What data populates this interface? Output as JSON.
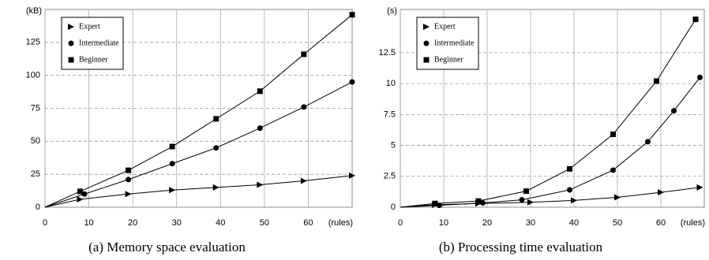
{
  "chart_data": [
    {
      "type": "line",
      "caption": "(a)  Memory space evaluation",
      "ylabel": "(kB)",
      "xlabel": "(rules)",
      "xlim": [
        0,
        70
      ],
      "xticks": [
        0,
        10,
        20,
        30,
        40,
        50,
        60
      ],
      "ylim": [
        0,
        150
      ],
      "yticks": [
        0,
        25,
        50,
        75,
        100,
        125
      ],
      "grid": true,
      "legend": "upper left",
      "series": [
        {
          "name": "Expert",
          "color": "#000000",
          "marker": "triangle",
          "x": [
            0,
            8,
            19,
            29,
            39,
            49,
            59,
            70
          ],
          "values": [
            0,
            6,
            10,
            13,
            15,
            17,
            20,
            24
          ]
        },
        {
          "name": "Intermediate",
          "color": "#000000",
          "marker": "circle",
          "x": [
            0,
            9,
            19,
            29,
            39,
            49,
            59,
            70
          ],
          "values": [
            0,
            10,
            21,
            33,
            45,
            60,
            76,
            95
          ]
        },
        {
          "name": "Beginner",
          "color": "#000000",
          "marker": "square",
          "x": [
            0,
            8,
            19,
            29,
            39,
            49,
            59,
            70
          ],
          "values": [
            0,
            12,
            28,
            46,
            67,
            88,
            116,
            146
          ]
        }
      ]
    },
    {
      "type": "line",
      "caption": "(b)  Processing time evaluation",
      "ylabel": "(s)",
      "xlabel": "(rules)",
      "xlim": [
        0,
        70
      ],
      "xticks": [
        0,
        10,
        20,
        30,
        40,
        50,
        60
      ],
      "ylim": [
        0,
        16
      ],
      "yticks": [
        0,
        2.5,
        5,
        7.5,
        10,
        12.5
      ],
      "grid": true,
      "legend": "upper left",
      "series": [
        {
          "name": "Expert",
          "color": "#000000",
          "marker": "triangle",
          "x": [
            0,
            8,
            18,
            30,
            40,
            50,
            60,
            69
          ],
          "values": [
            0,
            0.2,
            0.3,
            0.4,
            0.55,
            0.8,
            1.2,
            1.6
          ]
        },
        {
          "name": "Intermediate",
          "color": "#000000",
          "marker": "circle",
          "x": [
            0,
            9,
            19,
            28,
            39,
            49,
            57,
            63,
            69
          ],
          "values": [
            0,
            0.15,
            0.35,
            0.6,
            1.4,
            3.0,
            5.3,
            7.8,
            10.5
          ]
        },
        {
          "name": "Beginner",
          "color": "#000000",
          "marker": "square",
          "x": [
            0,
            8,
            18,
            29,
            39,
            49,
            59,
            68
          ],
          "values": [
            0,
            0.3,
            0.5,
            1.3,
            3.1,
            5.9,
            10.2,
            15.2
          ]
        }
      ]
    }
  ]
}
